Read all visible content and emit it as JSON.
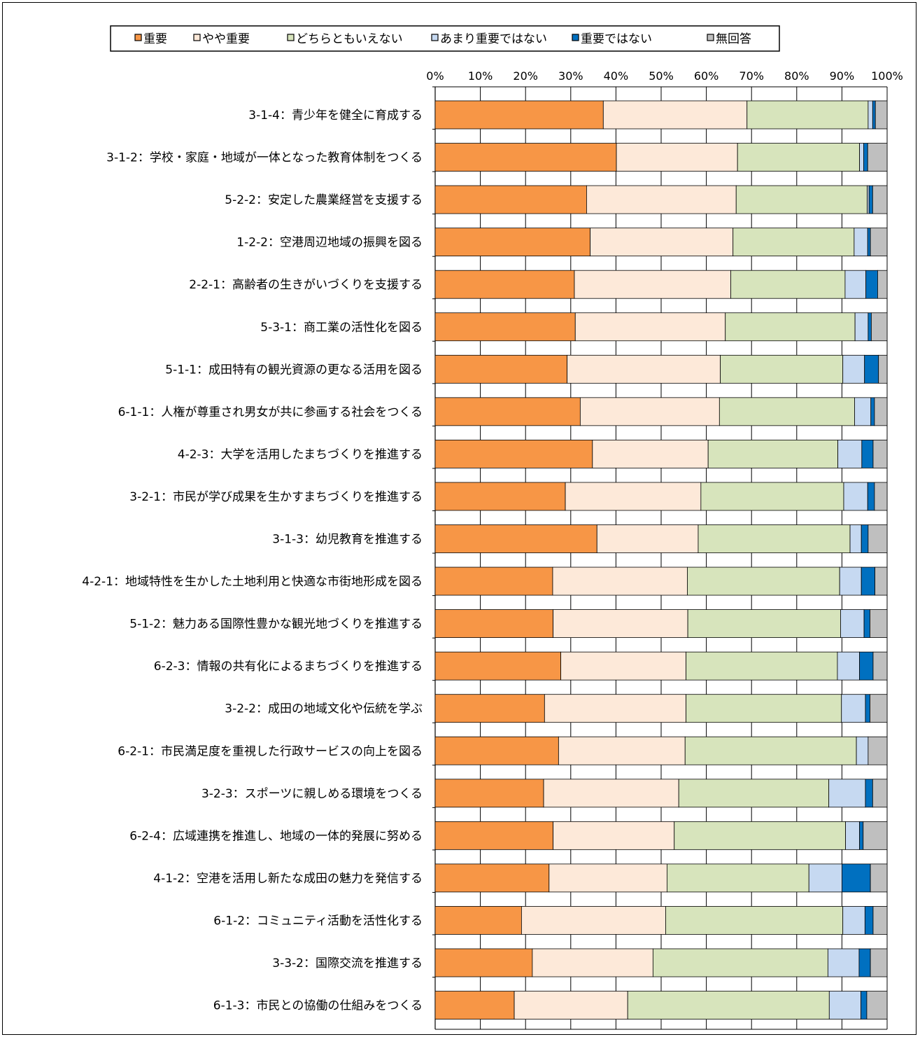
{
  "chart_data": {
    "type": "bar",
    "orientation": "horizontal",
    "stacked": "percent",
    "title": "",
    "xlim": [
      0,
      100
    ],
    "x_ticks": [
      "0%",
      "10%",
      "20%",
      "30%",
      "40%",
      "50%",
      "60%",
      "70%",
      "80%",
      "90%",
      "100%"
    ],
    "grid": true,
    "legend_position": "top",
    "categories": [
      "3-1-4：青少年を健全に育成する",
      "3-1-2：学校・家庭・地域が一体となった教育体制をつくる",
      "5-2-2：安定した農業経営を支援する",
      "1-2-2：空港周辺地域の振興を図る",
      "2-2-1：高齢者の生きがいづくりを支援する",
      "5-3-1：商工業の活性化を図る",
      "5-1-1：成田特有の観光資源の更なる活用を図る",
      "6-1-1：人権が尊重され男女が共に参画する社会をつくる",
      "4-2-3：大学を活用したまちづくりを推進する",
      "3-2-1：市民が学び成果を生かすまちづくりを推進する",
      "3-1-3：幼児教育を推進する",
      "4-2-1：地域特性を生かした土地利用と快適な市街地形成を図る",
      "5-1-2：魅力ある国際性豊かな観光地づくりを推進する",
      "6-2-3：情報の共有化によるまちづくりを推進する",
      "3-2-2：成田の地域文化や伝統を学ぶ",
      "6-2-1：市民満足度を重視した行政サービスの向上を図る",
      "3-2-3：スポーツに親しめる環境をつくる",
      "6-2-4：広域連携を推進し、地域の一体的発展に努める",
      "4-1-2：空港を活用し新たな成田の魅力を発信する",
      "6-1-2：コミュニティ活動を活性化する",
      "3-3-2：国際交流を推進する",
      "6-1-3：市民との協働の仕組みをつくる"
    ],
    "series": [
      {
        "name": "重要",
        "color": "#F79646",
        "values": [
          37.2,
          40.1,
          33.5,
          34.3,
          30.8,
          31.0,
          29.2,
          32.1,
          34.8,
          28.8,
          35.8,
          26.0,
          26.1,
          27.8,
          24.2,
          27.3,
          24.0,
          26.1,
          25.2,
          19.1,
          21.5,
          17.5
        ]
      },
      {
        "name": "やや重要",
        "color": "#FDE9D9",
        "values": [
          31.8,
          26.8,
          33.1,
          31.6,
          34.6,
          33.2,
          33.9,
          30.8,
          25.6,
          30.0,
          22.4,
          29.8,
          29.8,
          27.7,
          31.3,
          28.0,
          29.9,
          26.8,
          26.1,
          31.9,
          26.7,
          25.1
        ]
      },
      {
        "name": "どちらともいえない",
        "color": "#D7E4BC",
        "values": [
          26.8,
          27.0,
          29.0,
          26.8,
          25.3,
          28.7,
          27.1,
          29.9,
          28.7,
          31.6,
          33.6,
          33.7,
          33.8,
          33.5,
          34.4,
          37.9,
          33.2,
          37.9,
          31.4,
          39.2,
          38.7,
          44.6
        ]
      },
      {
        "name": "あまり重要ではない",
        "color": "#C6D9F1",
        "values": [
          1.0,
          0.9,
          0.4,
          3.0,
          4.6,
          2.9,
          4.8,
          3.6,
          5.3,
          5.3,
          2.5,
          4.8,
          5.2,
          4.9,
          5.3,
          2.6,
          8.1,
          3.1,
          7.3,
          4.9,
          6.9,
          7.0
        ]
      },
      {
        "name": "重要ではない",
        "color": "#0070C0",
        "values": [
          0.6,
          0.9,
          0.8,
          0.6,
          2.6,
          0.7,
          3.1,
          0.8,
          2.5,
          1.5,
          1.5,
          3.0,
          1.3,
          3.0,
          1.0,
          0.0,
          1.6,
          0.8,
          6.3,
          1.8,
          2.5,
          1.3
        ]
      },
      {
        "name": "無回答",
        "color": "#BFBFBF",
        "values": [
          2.6,
          4.3,
          3.2,
          3.7,
          2.1,
          3.5,
          1.9,
          2.8,
          3.1,
          2.8,
          4.2,
          2.7,
          3.8,
          3.1,
          3.8,
          4.2,
          3.2,
          5.3,
          3.7,
          3.1,
          3.7,
          4.5
        ]
      }
    ]
  }
}
